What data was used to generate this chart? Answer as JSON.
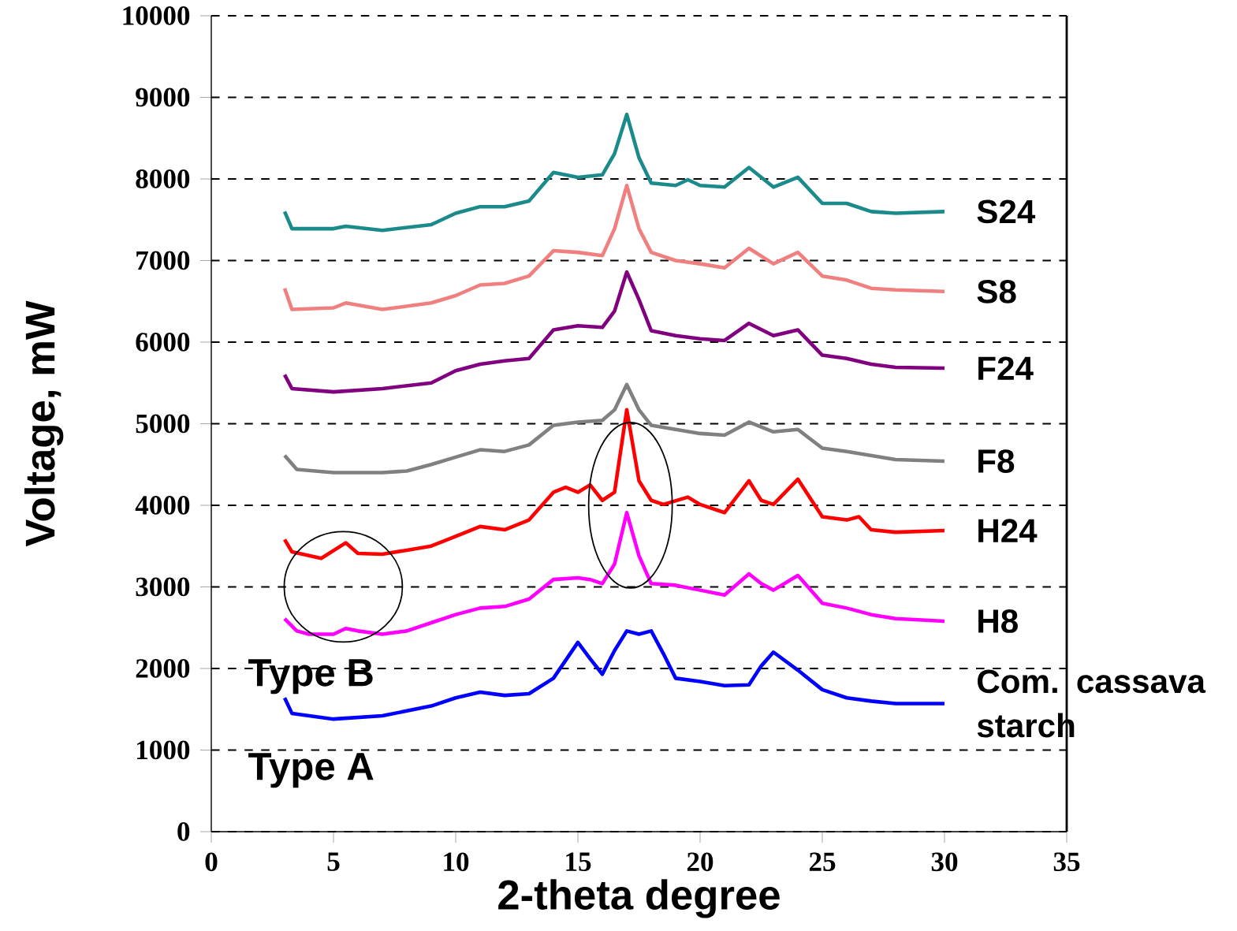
{
  "chart_data": {
    "type": "line",
    "xlabel": "2-theta degree",
    "ylabel": "Voltage, mW",
    "xlim": [
      0,
      35
    ],
    "xticks": [
      0,
      5,
      10,
      15,
      20,
      25,
      30,
      35
    ],
    "ylim": [
      0,
      10000
    ],
    "yticks": [
      0,
      1000,
      2000,
      3000,
      4000,
      5000,
      6000,
      7000,
      8000,
      9000,
      10000
    ],
    "grid": "y",
    "marker": "none",
    "line_style": "solid",
    "annotations": [
      "Type B",
      "Type A"
    ],
    "series": [
      {
        "name": "S24",
        "color": "#1a8a8a",
        "x": [
          3,
          3.3,
          5,
          5.5,
          7,
          9,
          10,
          11,
          12,
          13,
          14,
          15,
          16,
          16.5,
          17,
          17.5,
          18,
          19,
          19.5,
          20,
          21,
          22,
          23,
          24,
          25,
          26,
          27,
          28,
          30
        ],
        "values": [
          7600,
          7390,
          7390,
          7420,
          7370,
          7440,
          7580,
          7660,
          7660,
          7730,
          8080,
          8020,
          8050,
          8310,
          8790,
          8260,
          7950,
          7920,
          7990,
          7920,
          7900,
          8140,
          7900,
          8020,
          7700,
          7700,
          7600,
          7580,
          7600
        ]
      },
      {
        "name": "S8",
        "color": "#f08080",
        "x": [
          3,
          3.3,
          5,
          5.5,
          7,
          9,
          10,
          11,
          12,
          13,
          14,
          15,
          16,
          16.5,
          17,
          17.5,
          18,
          19,
          20,
          21,
          22,
          23,
          24,
          25,
          26,
          27,
          28,
          30
        ],
        "values": [
          6660,
          6400,
          6420,
          6480,
          6400,
          6480,
          6570,
          6700,
          6720,
          6810,
          7120,
          7100,
          7060,
          7390,
          7920,
          7390,
          7100,
          7000,
          6960,
          6910,
          7150,
          6960,
          7100,
          6810,
          6760,
          6660,
          6640,
          6620
        ]
      },
      {
        "name": "F24",
        "color": "#800080",
        "x": [
          3,
          3.3,
          5,
          7,
          9,
          10,
          11,
          12,
          13,
          14,
          15,
          16,
          16.5,
          17,
          17.5,
          18,
          19,
          20,
          21,
          22,
          23,
          24,
          25,
          26,
          27,
          28,
          30
        ],
        "values": [
          5600,
          5430,
          5390,
          5430,
          5500,
          5650,
          5730,
          5770,
          5800,
          6150,
          6200,
          6180,
          6380,
          6860,
          6520,
          6140,
          6080,
          6040,
          6020,
          6230,
          6080,
          6150,
          5840,
          5800,
          5730,
          5690,
          5680
        ]
      },
      {
        "name": "F8",
        "color": "#808080",
        "x": [
          3,
          3.5,
          5,
          7,
          8,
          9,
          10,
          11,
          12,
          13,
          14,
          15,
          16,
          16.5,
          17,
          17.5,
          18,
          19,
          20,
          21,
          22,
          23,
          24,
          25,
          26,
          27,
          28,
          30
        ],
        "values": [
          4610,
          4440,
          4400,
          4400,
          4420,
          4500,
          4590,
          4680,
          4660,
          4740,
          4980,
          5020,
          5040,
          5170,
          5480,
          5170,
          4980,
          4930,
          4880,
          4860,
          5020,
          4900,
          4930,
          4700,
          4660,
          4610,
          4560,
          4540
        ]
      },
      {
        "name": "H24",
        "color": "#ff0000",
        "x": [
          3,
          3.3,
          4.5,
          5.5,
          6,
          7,
          8,
          9,
          10,
          11,
          12,
          13,
          14,
          14.5,
          15,
          15.5,
          16,
          16.5,
          17,
          17.5,
          18,
          18.5,
          19.5,
          20,
          21,
          22,
          22.5,
          23,
          24,
          25,
          26,
          26.5,
          27,
          28,
          30
        ],
        "values": [
          3580,
          3430,
          3350,
          3540,
          3410,
          3400,
          3450,
          3500,
          3620,
          3740,
          3700,
          3820,
          4160,
          4220,
          4160,
          4250,
          4060,
          4160,
          5170,
          4300,
          4060,
          4010,
          4100,
          4010,
          3910,
          4300,
          4060,
          4010,
          4320,
          3860,
          3820,
          3860,
          3700,
          3670,
          3690
        ]
      },
      {
        "name": "H8",
        "color": "#ff00ff",
        "x": [
          3,
          3.5,
          4,
          5,
          5.5,
          6,
          7,
          8,
          9,
          10,
          11,
          12,
          13,
          14,
          15,
          15.5,
          16,
          16.5,
          17,
          17.5,
          18,
          19,
          20,
          21,
          22,
          22.5,
          23,
          24,
          25,
          26,
          27,
          28,
          30
        ],
        "values": [
          2610,
          2460,
          2420,
          2420,
          2490,
          2460,
          2420,
          2460,
          2560,
          2660,
          2740,
          2760,
          2850,
          3090,
          3110,
          3090,
          3040,
          3280,
          3910,
          3380,
          3040,
          3020,
          2960,
          2900,
          3160,
          3040,
          2960,
          3140,
          2800,
          2740,
          2660,
          2610,
          2580
        ]
      },
      {
        "name": "Com. cassava starch",
        "color": "#0000ff",
        "x": [
          3,
          3.3,
          5,
          7,
          9,
          10,
          11,
          12,
          13,
          14,
          15,
          15.5,
          16,
          16.5,
          17,
          17.5,
          18,
          18.5,
          19,
          20,
          21,
          22,
          22.5,
          23,
          24,
          25,
          26,
          27,
          28,
          30
        ],
        "values": [
          1640,
          1450,
          1380,
          1420,
          1540,
          1640,
          1710,
          1670,
          1690,
          1880,
          2320,
          2120,
          1930,
          2220,
          2460,
          2420,
          2460,
          2180,
          1880,
          1840,
          1790,
          1800,
          2030,
          2200,
          1980,
          1740,
          1640,
          1600,
          1570,
          1570
        ]
      }
    ]
  }
}
